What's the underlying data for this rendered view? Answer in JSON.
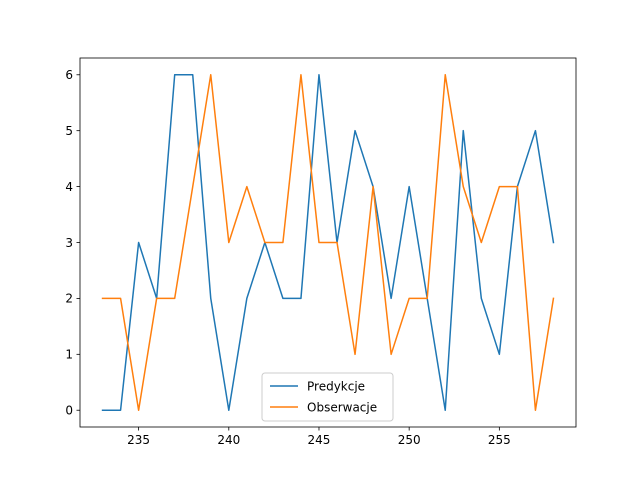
{
  "chart_data": {
    "type": "line",
    "title": "",
    "xlabel": "",
    "ylabel": "",
    "x": [
      233,
      234,
      235,
      236,
      237,
      238,
      239,
      240,
      241,
      242,
      243,
      244,
      245,
      246,
      247,
      248,
      249,
      250,
      251,
      252,
      253,
      254,
      255,
      256,
      257,
      258
    ],
    "xlim": [
      231.75,
      259.25
    ],
    "ylim": [
      -0.3,
      6.3
    ],
    "xticks": [
      235,
      240,
      245,
      250,
      255
    ],
    "yticks": [
      0,
      1,
      2,
      3,
      4,
      5,
      6
    ],
    "grid": false,
    "legend_position": "lower-center",
    "series": [
      {
        "name": "Predykcje",
        "color": "#1f77b4",
        "values": [
          0,
          0,
          3,
          2,
          6,
          6,
          2,
          0,
          2,
          3,
          2,
          2,
          6,
          3,
          5,
          4,
          2,
          4,
          2,
          0,
          5,
          2,
          1,
          4,
          5,
          3
        ]
      },
      {
        "name": "Obserwacje",
        "color": "#ff7f0e",
        "values": [
          2,
          2,
          0,
          2,
          2,
          4,
          6,
          3,
          4,
          3,
          3,
          6,
          3,
          3,
          1,
          4,
          1,
          2,
          2,
          6,
          4,
          3,
          4,
          4,
          0,
          2
        ]
      }
    ]
  }
}
